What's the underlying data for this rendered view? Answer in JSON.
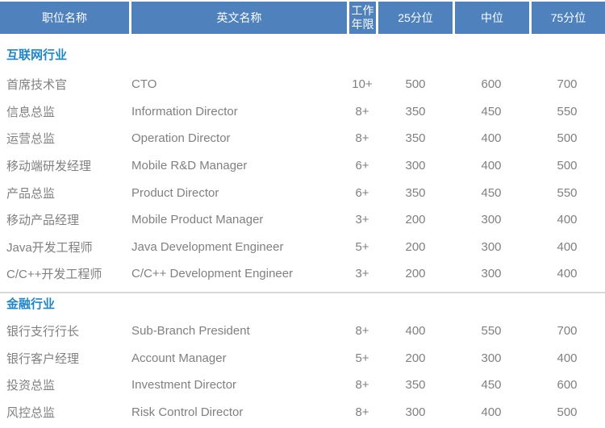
{
  "colors": {
    "header_bg": "#4f81bd",
    "header_text": "#ffffff",
    "section_title": "#1f87c9",
    "body_text": "#808080",
    "divider": "#d9d9d9"
  },
  "header": {
    "columns": [
      "职位名称",
      "英文名称",
      "工作年限",
      "25分位",
      "中位",
      "75分位"
    ]
  },
  "sections": [
    {
      "title": "互联网行业",
      "rows": [
        {
          "cn": "首席技术官",
          "en": "CTO",
          "years": "10+",
          "p25": "500",
          "p50": "600",
          "p75": "700"
        },
        {
          "cn": "信息总监",
          "en": "Information Director",
          "years": "8+",
          "p25": "350",
          "p50": "450",
          "p75": "550"
        },
        {
          "cn": "运营总监",
          "en": "Operation Director",
          "years": "8+",
          "p25": "350",
          "p50": "400",
          "p75": "500"
        },
        {
          "cn": "移动端研发经理",
          "en": "Mobile R&D Manager",
          "years": "6+",
          "p25": "300",
          "p50": "400",
          "p75": "500"
        },
        {
          "cn": "产品总监",
          "en": "Product Director",
          "years": "6+",
          "p25": "350",
          "p50": "450",
          "p75": "550"
        },
        {
          "cn": "移动产品经理",
          "en": "Mobile Product Manager",
          "years": "3+",
          "p25": "200",
          "p50": "300",
          "p75": "400"
        },
        {
          "cn": "Java开发工程师",
          "en": "Java Development Engineer",
          "years": "5+",
          "p25": "200",
          "p50": "300",
          "p75": "400"
        },
        {
          "cn": "C/C++开发工程师",
          "en": "C/C++ Development Engineer",
          "years": "3+",
          "p25": "200",
          "p50": "300",
          "p75": "400"
        }
      ]
    },
    {
      "title": "金融行业",
      "rows": [
        {
          "cn": "银行支行行长",
          "en": "Sub-Branch President",
          "years": "8+",
          "p25": "400",
          "p50": "550",
          "p75": "700"
        },
        {
          "cn": "银行客户经理",
          "en": "Account Manager",
          "years": "5+",
          "p25": "200",
          "p50": "300",
          "p75": "400"
        },
        {
          "cn": "投资总监",
          "en": "Investment Director",
          "years": "8+",
          "p25": "350",
          "p50": "450",
          "p75": "600"
        },
        {
          "cn": "风控总监",
          "en": "Risk Control Director",
          "years": "8+",
          "p25": "300",
          "p50": "400",
          "p75": "500"
        }
      ]
    }
  ]
}
